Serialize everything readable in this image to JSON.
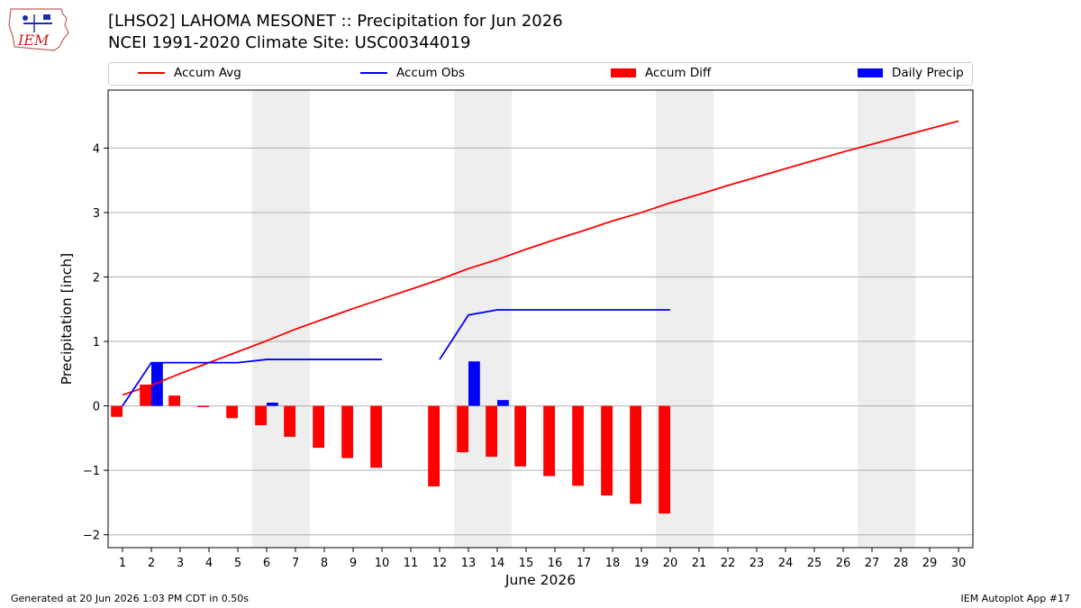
{
  "header": {
    "title": "[LHSO2] LAHOMA MESONET :: Precipitation for Jun 2026",
    "subtitle": "NCEI 1991-2020 Climate Site: USC00344019",
    "logo_text": "IEM"
  },
  "legend": [
    {
      "label": "Accum Avg",
      "kind": "line",
      "color": "#ff0000"
    },
    {
      "label": "Accum Obs",
      "kind": "line",
      "color": "#0000ff"
    },
    {
      "label": "Accum Diff",
      "kind": "box",
      "color": "#ff0000"
    },
    {
      "label": "Daily Precip",
      "kind": "box",
      "color": "#0000ff"
    }
  ],
  "footer": {
    "left": "Generated at 20 Jun 2026 1:03 PM CDT in 0.50s",
    "right": "IEM Autoplot App #17"
  },
  "chart_data": {
    "type": "bar",
    "xlabel": "June 2026",
    "ylabel": "Precipitation [inch]",
    "x": [
      1,
      2,
      3,
      4,
      5,
      6,
      7,
      8,
      9,
      10,
      11,
      12,
      13,
      14,
      15,
      16,
      17,
      18,
      19,
      20,
      21,
      22,
      23,
      24,
      25,
      26,
      27,
      28,
      29,
      30
    ],
    "ylim": [
      -2.2,
      4.9
    ],
    "yticks": [
      -2,
      -1,
      0,
      1,
      2,
      3,
      4
    ],
    "ytick_labels": [
      "−2",
      "−1",
      "0",
      "1",
      "2",
      "3",
      "4"
    ],
    "grid": "horizontal",
    "weekend_shading": [
      [
        6,
        7
      ],
      [
        13,
        14
      ],
      [
        20,
        21
      ],
      [
        27,
        28
      ]
    ],
    "colors": {
      "avg": "#ff0000",
      "obs": "#0000ff",
      "diff": "#ff0000",
      "daily": "#0000ff",
      "weekend": "#eeeeee",
      "grid": "#b0b0b0"
    },
    "series": [
      {
        "name": "Accum Avg",
        "kind": "line",
        "values": [
          0.17,
          0.32,
          0.5,
          0.67,
          0.84,
          1.01,
          1.19,
          1.35,
          1.51,
          1.66,
          1.81,
          1.96,
          2.13,
          2.27,
          2.43,
          2.58,
          2.72,
          2.87,
          3.0,
          3.15,
          3.28,
          3.42,
          3.55,
          3.68,
          3.81,
          3.94,
          4.06,
          4.18,
          4.3,
          4.42
        ]
      },
      {
        "name": "Accum Obs",
        "kind": "line",
        "values": [
          0.0,
          0.67,
          0.67,
          0.67,
          0.67,
          0.72,
          0.72,
          0.72,
          0.72,
          0.72,
          null,
          0.72,
          1.41,
          1.49,
          1.49,
          1.49,
          1.49,
          1.49,
          1.49,
          1.49,
          null,
          null,
          null,
          null,
          null,
          null,
          null,
          null,
          null,
          null
        ]
      },
      {
        "name": "Accum Diff",
        "kind": "bar",
        "values": [
          -0.17,
          0.33,
          0.16,
          -0.02,
          -0.19,
          -0.3,
          -0.48,
          -0.65,
          -0.81,
          -0.96,
          null,
          -1.25,
          -0.72,
          -0.79,
          -0.94,
          -1.09,
          -1.24,
          -1.39,
          -1.52,
          -1.67,
          null,
          null,
          null,
          null,
          null,
          null,
          null,
          null,
          null,
          null
        ]
      },
      {
        "name": "Daily Precip",
        "kind": "bar",
        "values": [
          0.0,
          0.67,
          0.0,
          0.0,
          0.0,
          0.05,
          0.0,
          0.0,
          0.0,
          0.0,
          null,
          0.0,
          0.69,
          0.09,
          0.0,
          0.0,
          0.0,
          0.0,
          0.0,
          0.0,
          null,
          null,
          null,
          null,
          null,
          null,
          null,
          null,
          null,
          null
        ]
      }
    ]
  }
}
